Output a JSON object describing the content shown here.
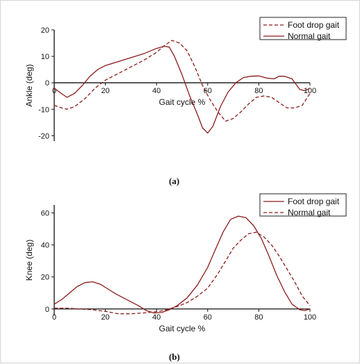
{
  "colors": {
    "series": "#8b1a1a",
    "axis": "#111111",
    "legend_border": "#222222"
  },
  "chart_data": [
    {
      "type": "line",
      "panel_label": "(a)",
      "xlabel": "Gait cycle %",
      "ylabel": "Ankle (deg)",
      "xlim": [
        0,
        100
      ],
      "ylim": [
        -22,
        20
      ],
      "x_ticks": [
        0,
        20,
        40,
        60,
        80,
        100
      ],
      "y_ticks": [
        -20,
        -10,
        0,
        10,
        20
      ],
      "grid": false,
      "legend_position": "top-right",
      "series": [
        {
          "name": "Foot drop gait",
          "style": "dashed",
          "points": [
            [
              0,
              -8.5
            ],
            [
              3,
              -9.5
            ],
            [
              5,
              -10
            ],
            [
              8,
              -9
            ],
            [
              12,
              -6
            ],
            [
              16,
              -2
            ],
            [
              20,
              1
            ],
            [
              25,
              3.5
            ],
            [
              30,
              6
            ],
            [
              35,
              8.5
            ],
            [
              40,
              11.5
            ],
            [
              43,
              14
            ],
            [
              46,
              16
            ],
            [
              49,
              15
            ],
            [
              52,
              12
            ],
            [
              55,
              6
            ],
            [
              58,
              -1
            ],
            [
              61,
              -6.5
            ],
            [
              64,
              -11
            ],
            [
              67,
              -14.5
            ],
            [
              70,
              -13.5
            ],
            [
              73,
              -11
            ],
            [
              76,
              -8
            ],
            [
              79,
              -5.5
            ],
            [
              82,
              -5
            ],
            [
              85,
              -5.5
            ],
            [
              88,
              -7.5
            ],
            [
              91,
              -9.5
            ],
            [
              94,
              -9.5
            ],
            [
              97,
              -8.5
            ],
            [
              100,
              -4
            ]
          ]
        },
        {
          "name": "Normal gait",
          "style": "solid",
          "points": [
            [
              0,
              -2
            ],
            [
              2,
              -3.5
            ],
            [
              5,
              -5.5
            ],
            [
              8,
              -4
            ],
            [
              11,
              -1
            ],
            [
              14,
              2.5
            ],
            [
              17,
              5
            ],
            [
              20,
              6.5
            ],
            [
              25,
              8
            ],
            [
              30,
              9.5
            ],
            [
              35,
              11
            ],
            [
              40,
              13
            ],
            [
              43,
              13.8
            ],
            [
              45,
              13.5
            ],
            [
              47,
              10
            ],
            [
              50,
              3
            ],
            [
              53,
              -5
            ],
            [
              56,
              -12
            ],
            [
              58,
              -17
            ],
            [
              60,
              -19
            ],
            [
              62,
              -16.5
            ],
            [
              65,
              -9
            ],
            [
              68,
              -3.5
            ],
            [
              71,
              0
            ],
            [
              74,
              2
            ],
            [
              77,
              2.5
            ],
            [
              80,
              2.6
            ],
            [
              83,
              1.8
            ],
            [
              86,
              1.5
            ],
            [
              88,
              2.5
            ],
            [
              90,
              2.5
            ],
            [
              93,
              1.5
            ],
            [
              96,
              -2.5
            ],
            [
              98,
              -3
            ],
            [
              100,
              -2
            ]
          ]
        }
      ]
    },
    {
      "type": "line",
      "panel_label": "(b)",
      "xlabel": "Gait cycle %",
      "ylabel": "Knee (deg)",
      "xlim": [
        0,
        100
      ],
      "ylim": [
        -4,
        65
      ],
      "x_ticks": [
        0,
        20,
        40,
        60,
        80,
        100
      ],
      "y_ticks": [
        0,
        20,
        40,
        60
      ],
      "grid": false,
      "legend_position": "top-right",
      "series": [
        {
          "name": "Foot drop gait",
          "style": "solid",
          "points": [
            [
              0,
              3
            ],
            [
              3,
              6
            ],
            [
              6,
              10
            ],
            [
              9,
              14
            ],
            [
              12,
              16.5
            ],
            [
              15,
              17
            ],
            [
              18,
              15.5
            ],
            [
              21,
              12.5
            ],
            [
              24,
              9.5
            ],
            [
              27,
              7
            ],
            [
              30,
              4.5
            ],
            [
              33,
              2
            ],
            [
              36,
              -1
            ],
            [
              39,
              -2.5
            ],
            [
              42,
              -2.2
            ],
            [
              45,
              -0.5
            ],
            [
              48,
              2
            ],
            [
              52,
              7
            ],
            [
              56,
              15
            ],
            [
              60,
              26
            ],
            [
              63,
              37
            ],
            [
              66,
              48
            ],
            [
              69,
              56
            ],
            [
              72,
              58
            ],
            [
              75,
              57
            ],
            [
              78,
              52
            ],
            [
              81,
              44
            ],
            [
              84,
              33
            ],
            [
              87,
              21
            ],
            [
              90,
              11
            ],
            [
              93,
              3
            ],
            [
              96,
              -0.5
            ],
            [
              98,
              -1
            ],
            [
              100,
              0
            ]
          ]
        },
        {
          "name": "Normal gait",
          "style": "dashed",
          "points": [
            [
              0,
              0.5
            ],
            [
              5,
              0.5
            ],
            [
              10,
              0
            ],
            [
              15,
              -0.5
            ],
            [
              20,
              -1.5
            ],
            [
              25,
              -3
            ],
            [
              30,
              -3
            ],
            [
              35,
              -2.5
            ],
            [
              38,
              -2
            ],
            [
              41,
              -1.5
            ],
            [
              44,
              -0.5
            ],
            [
              48,
              1.5
            ],
            [
              52,
              4
            ],
            [
              56,
              8
            ],
            [
              60,
              13
            ],
            [
              64,
              22
            ],
            [
              67,
              30
            ],
            [
              70,
              38
            ],
            [
              73,
              43
            ],
            [
              76,
              47
            ],
            [
              79,
              48
            ],
            [
              82,
              45
            ],
            [
              85,
              40
            ],
            [
              88,
              33
            ],
            [
              91,
              25
            ],
            [
              94,
              17
            ],
            [
              97,
              8
            ],
            [
              100,
              2
            ]
          ]
        }
      ]
    }
  ]
}
